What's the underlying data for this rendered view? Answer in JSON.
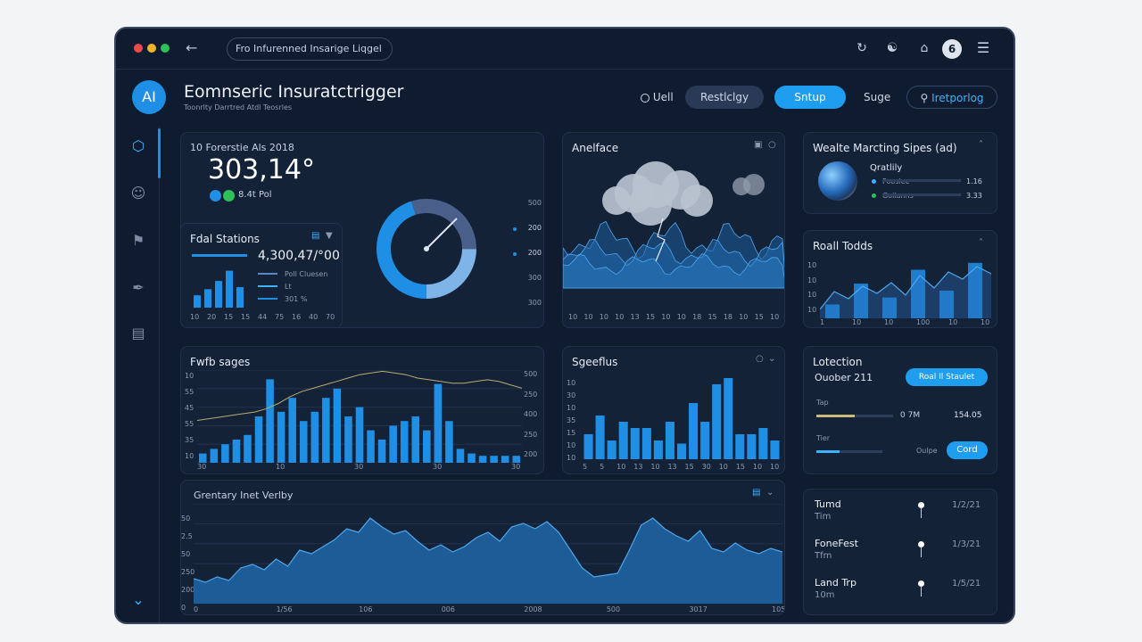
{
  "window": {
    "url": "Fro Infurenned Insarige Liqgel",
    "colors": {
      "accent": "#1f8fe6",
      "background": "#0f1b2e",
      "card": "#142238"
    }
  },
  "header": {
    "logo": "AI",
    "title": "Eomnseric Insuratctrigger",
    "subtitle": "Toonrlty Darrtred Atdl Teosrles",
    "nav": {
      "item1": "Uell",
      "item2": "Restlclgy",
      "item3": "Sntup",
      "item4": "Suge",
      "search": "Iretporlog"
    },
    "icons": [
      "sync-icon",
      "trash-icon",
      "home-icon",
      "profile-icon",
      "menu-icon"
    ],
    "avatar": "6"
  },
  "sidebar": {
    "icons": [
      "shield-icon",
      "user-icon",
      "helmet-icon",
      "feather-icon",
      "document-icon",
      "chevron-down-icon"
    ]
  },
  "kpi": {
    "title": "10 Forerstie Als 2018",
    "value": "303,14°",
    "sub": "8.4t Pol"
  },
  "fetal": {
    "title": "Fdal Stations",
    "value": "4,300,47/°00",
    "legend": [
      "Poll Cluesen",
      "Lt",
      "301 %"
    ],
    "xlabels": [
      "10",
      "20",
      "15",
      "15",
      "44",
      "75",
      "16",
      "40",
      "70"
    ],
    "chart_data": {
      "type": "bar",
      "categories": [
        "1",
        "2",
        "3",
        "4",
        "5"
      ],
      "values": [
        12,
        18,
        26,
        36,
        20
      ]
    }
  },
  "gauge": {
    "right_labels": [
      "500",
      "200",
      "200",
      "300",
      "300"
    ],
    "chart_data": {
      "type": "pie",
      "values": [
        45,
        30,
        25
      ]
    }
  },
  "weather": {
    "title": "Anelface",
    "xlabels": [
      "10",
      "10",
      "10",
      "10",
      "13",
      "15",
      "10",
      "10",
      "18",
      "15",
      "18",
      "10",
      "15",
      "10"
    ]
  },
  "stages": {
    "title": "Wealte Marcting Sipes (ad)",
    "item": "Qratlily",
    "rows": [
      {
        "label": "Pooslee",
        "value": "1.16"
      },
      {
        "label": "Gollanns",
        "value": "3.33"
      }
    ]
  },
  "roll": {
    "title": "Roall Todds",
    "ylabels": [
      "10",
      "10",
      "10",
      "10"
    ],
    "xlabels": [
      "1",
      "10",
      "10",
      "100",
      "10",
      "10"
    ],
    "chart_data": {
      "type": "bar",
      "values": [
        2,
        5,
        3,
        7,
        4,
        8
      ]
    }
  },
  "flow": {
    "title": "Fwfb sages",
    "ylabels_left": [
      "10",
      "55",
      "45",
      "55",
      "35",
      "10"
    ],
    "ylabels_right": [
      "500",
      "250",
      "400",
      "250",
      "200"
    ],
    "xlabels": [
      "30",
      "10",
      "30",
      "30",
      "30"
    ],
    "chart_data": {
      "type": "bar",
      "values": [
        4,
        6,
        8,
        10,
        12,
        20,
        36,
        22,
        28,
        18,
        22,
        28,
        32,
        20,
        24,
        14,
        10,
        16,
        18,
        20,
        14,
        34,
        18,
        6,
        4,
        3,
        3,
        3,
        3
      ]
    }
  },
  "spectrum": {
    "title": "Sgeeflus",
    "ylabels": [
      "10",
      "30",
      "10",
      "35",
      "15",
      "10",
      "10"
    ],
    "xlabels": [
      "5",
      "5",
      "10",
      "13",
      "10",
      "13",
      "15",
      "30",
      "10",
      "15",
      "10",
      "10"
    ],
    "chart_data": {
      "type": "bar",
      "values": [
        8,
        14,
        6,
        12,
        10,
        10,
        6,
        12,
        5,
        18,
        12,
        24,
        26,
        8,
        8,
        10,
        6
      ]
    }
  },
  "location": {
    "title": "Lotection",
    "date": "Ouober 211",
    "badge": "Roal Il Staulet",
    "row1_label": "Tap",
    "row1_value": "0 7M",
    "row1_extra": "154.05",
    "row2_label": "Tier",
    "row2_hint": "Oulpe",
    "row2_button": "Cord",
    "row1_level": 0.5,
    "row2_level": 0.35
  },
  "variety": {
    "title": "Grentary Inet Verlby",
    "ylabels": [
      "50",
      "2.5",
      "50",
      "250",
      "200",
      "0"
    ],
    "xlabels": [
      "0",
      "1/56",
      "106",
      "006",
      "2008",
      "500",
      "3017",
      "105"
    ]
  },
  "timeline": {
    "items": [
      {
        "title": "Tumd",
        "sub": "Tim",
        "date": "1/2/21"
      },
      {
        "title": "FoneFest",
        "sub": "Tfm",
        "date": "1/3/21"
      },
      {
        "title": "Land Trp",
        "sub": "10m",
        "date": "1/5/21"
      }
    ]
  }
}
